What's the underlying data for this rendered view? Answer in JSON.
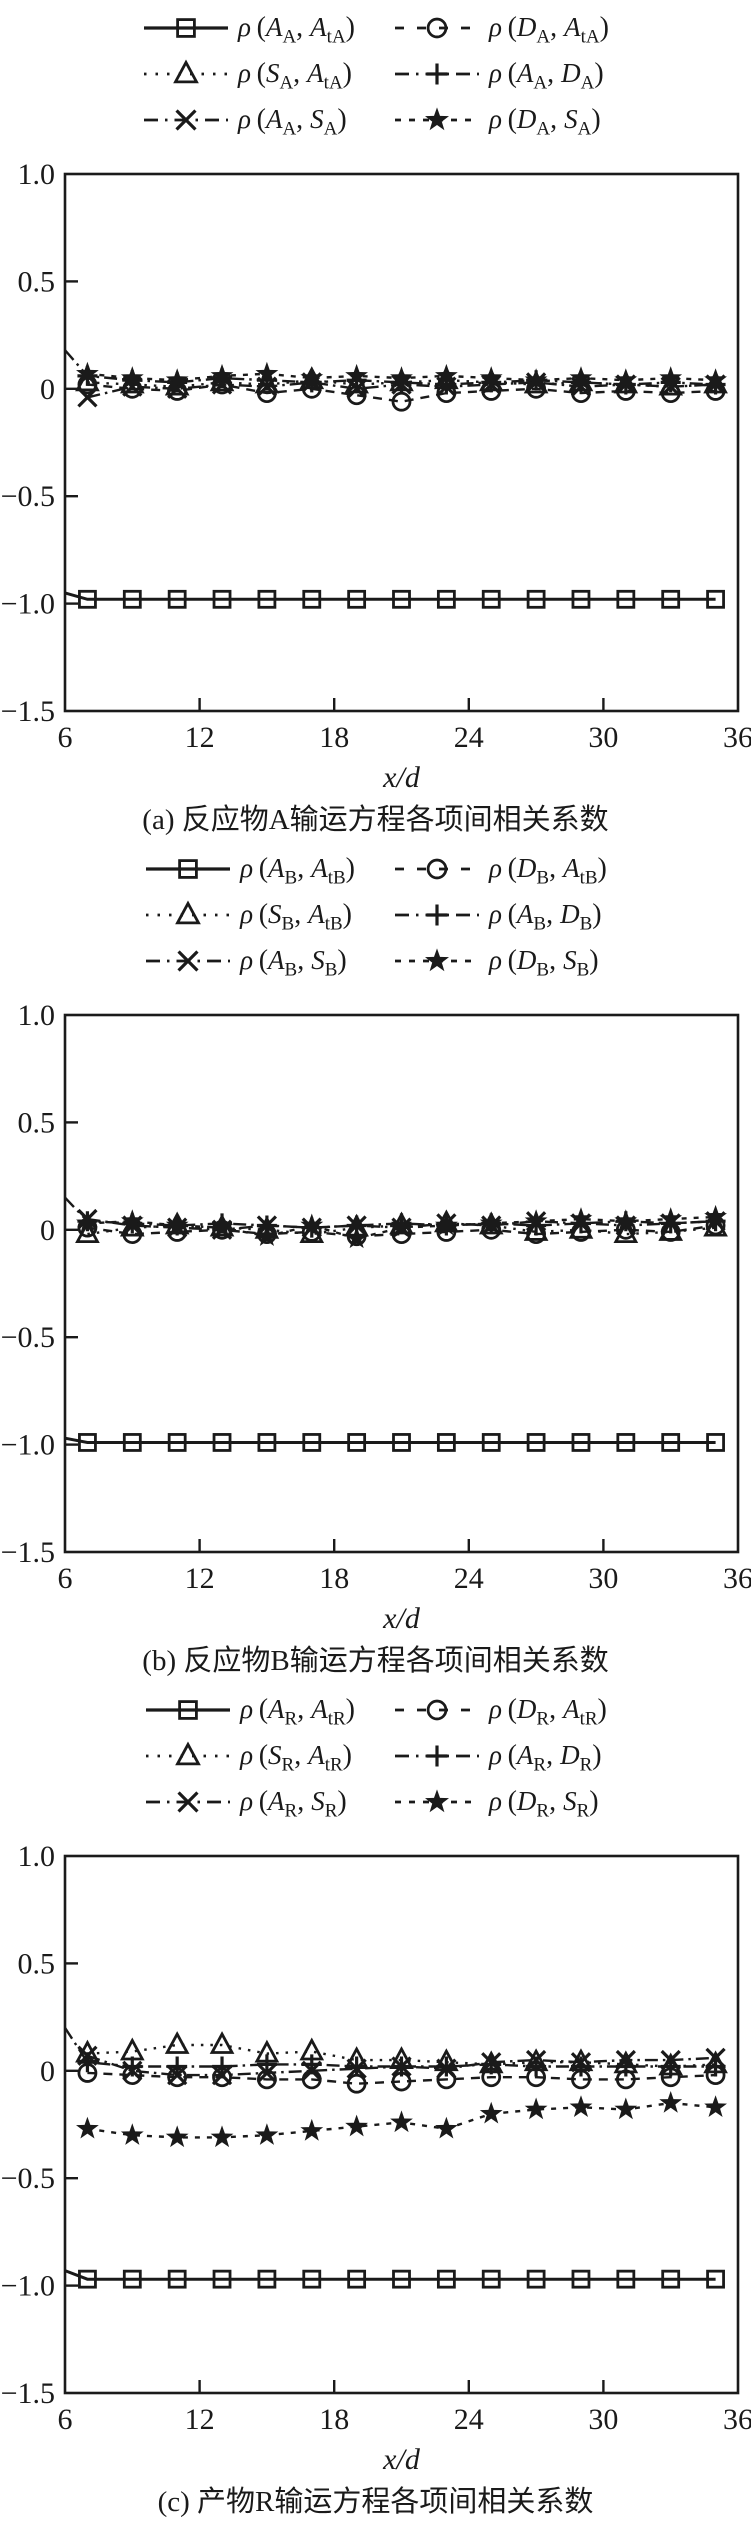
{
  "figure": {
    "ink": "#1a1a1a",
    "background": "#ffffff"
  },
  "axis": {
    "xlabel": "x/d",
    "xlim": [
      6,
      36
    ],
    "ylim": [
      -1.5,
      1.0
    ],
    "x_ticks": [
      6,
      12,
      18,
      24,
      30,
      36
    ],
    "y_ticks": [
      1.0,
      0.5,
      0,
      -0.5,
      -1.0,
      -1.5
    ],
    "y_tick_labels": [
      "1.0",
      "0.5",
      "0",
      "−0.5",
      "−1.0",
      "−1.5"
    ],
    "grid": false
  },
  "panels": [
    {
      "id": "a",
      "caption": "(a) 反应物A输运方程各项间相关系数",
      "legend": [
        {
          "marker": "square",
          "line": "solid",
          "label": {
            "v1": "A",
            "s1": "A",
            "v2": "A",
            "s2": "tA"
          }
        },
        {
          "marker": "circle",
          "line": "dash",
          "label": {
            "v1": "D",
            "s1": "A",
            "v2": "A",
            "s2": "tA"
          }
        },
        {
          "marker": "triangle",
          "line": "dot",
          "label": {
            "v1": "S",
            "s1": "A",
            "v2": "A",
            "s2": "tA"
          }
        },
        {
          "marker": "plus",
          "line": "dashdot",
          "label": {
            "v1": "A",
            "s1": "A",
            "v2": "D",
            "s2": "A"
          }
        },
        {
          "marker": "x",
          "line": "dashdot",
          "label": {
            "v1": "A",
            "s1": "A",
            "v2": "S",
            "s2": "A"
          }
        },
        {
          "marker": "star",
          "line": "dash2",
          "label": {
            "v1": "D",
            "s1": "A",
            "v2": "S",
            "s2": "A"
          }
        }
      ]
    },
    {
      "id": "b",
      "caption": "(b) 反应物B输运方程各项间相关系数",
      "legend": [
        {
          "marker": "square",
          "line": "solid",
          "label": {
            "v1": "A",
            "s1": "B",
            "v2": "A",
            "s2": "tB"
          }
        },
        {
          "marker": "circle",
          "line": "dash",
          "label": {
            "v1": "D",
            "s1": "B",
            "v2": "A",
            "s2": "tB"
          }
        },
        {
          "marker": "triangle",
          "line": "dot",
          "label": {
            "v1": "S",
            "s1": "B",
            "v2": "A",
            "s2": "tB"
          }
        },
        {
          "marker": "plus",
          "line": "dashdot",
          "label": {
            "v1": "A",
            "s1": "B",
            "v2": "D",
            "s2": "B"
          }
        },
        {
          "marker": "x",
          "line": "dashdot",
          "label": {
            "v1": "A",
            "s1": "B",
            "v2": "S",
            "s2": "B"
          }
        },
        {
          "marker": "star",
          "line": "dash2",
          "label": {
            "v1": "D",
            "s1": "B",
            "v2": "S",
            "s2": "B"
          }
        }
      ]
    },
    {
      "id": "c",
      "caption": "(c) 产物R输运方程各项间相关系数",
      "legend": [
        {
          "marker": "square",
          "line": "solid",
          "label": {
            "v1": "A",
            "s1": "R",
            "v2": "A",
            "s2": "tR"
          }
        },
        {
          "marker": "circle",
          "line": "dash",
          "label": {
            "v1": "D",
            "s1": "R",
            "v2": "A",
            "s2": "tR"
          }
        },
        {
          "marker": "triangle",
          "line": "dot",
          "label": {
            "v1": "S",
            "s1": "R",
            "v2": "A",
            "s2": "tR"
          }
        },
        {
          "marker": "plus",
          "line": "dashdot",
          "label": {
            "v1": "A",
            "s1": "R",
            "v2": "D",
            "s2": "R"
          }
        },
        {
          "marker": "x",
          "line": "dashdot",
          "label": {
            "v1": "A",
            "s1": "R",
            "v2": "S",
            "s2": "R"
          }
        },
        {
          "marker": "star",
          "line": "dash2",
          "label": {
            "v1": "D",
            "s1": "R",
            "v2": "S",
            "s2": "R"
          }
        }
      ]
    }
  ],
  "chart_data": [
    {
      "type": "line",
      "title": "(a) 反应物A输运方程各项间相关系数",
      "xlabel": "x/d",
      "ylabel": "",
      "xlim": [
        6,
        36
      ],
      "ylim": [
        -1.5,
        1.0
      ],
      "x_ticks": [
        6,
        12,
        18,
        24,
        30,
        36
      ],
      "y_ticks": [
        1.0,
        0.5,
        0,
        -0.5,
        -1.0,
        -1.5
      ],
      "legend_position": "top",
      "x": [
        7,
        9,
        11,
        13,
        15,
        17,
        19,
        21,
        23,
        25,
        27,
        29,
        31,
        33,
        35
      ],
      "series": [
        {
          "name": "ρ(A_A, A_tA)",
          "marker": "square",
          "line": "solid",
          "lead": [
            6,
            -0.95
          ],
          "values": [
            -0.98,
            -0.98,
            -0.98,
            -0.98,
            -0.98,
            -0.98,
            -0.98,
            -0.98,
            -0.98,
            -0.98,
            -0.98,
            -0.98,
            -0.98,
            -0.98,
            -0.98
          ]
        },
        {
          "name": "ρ(D_A, A_tA)",
          "marker": "circle",
          "line": "dash",
          "values": [
            0.02,
            0.0,
            -0.01,
            0.02,
            -0.02,
            0.0,
            -0.03,
            -0.06,
            -0.02,
            -0.01,
            0.0,
            -0.02,
            -0.01,
            -0.02,
            -0.01
          ]
        },
        {
          "name": "ρ(S_A, A_tA)",
          "marker": "triangle",
          "line": "dot",
          "values": [
            0.03,
            0.02,
            0.01,
            0.03,
            0.02,
            0.04,
            0.02,
            0.03,
            0.04,
            0.03,
            0.02,
            0.03,
            0.02,
            0.01,
            0.02
          ]
        },
        {
          "name": "ρ(A_A, D_A)",
          "marker": "plus",
          "line": "dashdot",
          "lead": [
            6,
            0.18
          ],
          "values": [
            0.06,
            0.04,
            0.03,
            0.05,
            0.04,
            0.03,
            0.04,
            0.03,
            0.02,
            0.03,
            0.04,
            0.03,
            0.02,
            0.03,
            0.02
          ]
        },
        {
          "name": "ρ(A_A, S_A)",
          "marker": "x",
          "line": "dashdot",
          "values": [
            -0.04,
            0.01,
            0.0,
            0.02,
            0.01,
            0.03,
            0.0,
            0.02,
            0.01,
            0.02,
            0.03,
            0.01,
            0.02,
            0.01,
            0.02
          ]
        },
        {
          "name": "ρ(D_A, S_A)",
          "marker": "star",
          "line": "dash2",
          "values": [
            0.07,
            0.05,
            0.04,
            0.06,
            0.07,
            0.05,
            0.06,
            0.05,
            0.06,
            0.05,
            0.04,
            0.05,
            0.04,
            0.05,
            0.04
          ]
        }
      ]
    },
    {
      "type": "line",
      "title": "(b) 反应物B输运方程各项间相关系数",
      "xlabel": "x/d",
      "ylabel": "",
      "xlim": [
        6,
        36
      ],
      "ylim": [
        -1.5,
        1.0
      ],
      "x_ticks": [
        6,
        12,
        18,
        24,
        30,
        36
      ],
      "y_ticks": [
        1.0,
        0.5,
        0,
        -0.5,
        -1.0,
        -1.5
      ],
      "legend_position": "top",
      "x": [
        7,
        9,
        11,
        13,
        15,
        17,
        19,
        21,
        23,
        25,
        27,
        29,
        31,
        33,
        35
      ],
      "series": [
        {
          "name": "ρ(A_B, A_tB)",
          "marker": "square",
          "line": "solid",
          "lead": [
            6,
            -0.97
          ],
          "values": [
            -0.99,
            -0.99,
            -0.99,
            -0.99,
            -0.99,
            -0.99,
            -0.99,
            -0.99,
            -0.99,
            -0.99,
            -0.99,
            -0.99,
            -0.99,
            -0.99,
            -0.99
          ]
        },
        {
          "name": "ρ(D_B, A_tB)",
          "marker": "circle",
          "line": "dash",
          "values": [
            0.01,
            -0.02,
            -0.01,
            0.0,
            -0.02,
            -0.01,
            -0.03,
            -0.02,
            -0.01,
            0.0,
            -0.02,
            -0.01,
            0.0,
            -0.01,
            0.02
          ]
        },
        {
          "name": "ρ(S_B, A_tB)",
          "marker": "triangle",
          "line": "dot",
          "values": [
            -0.02,
            0.01,
            0.02,
            0.01,
            0.0,
            -0.02,
            0.01,
            0.02,
            0.03,
            0.02,
            -0.01,
            0.0,
            -0.02,
            -0.01,
            0.01
          ]
        },
        {
          "name": "ρ(A_B, D_B)",
          "marker": "plus",
          "line": "dashdot",
          "lead": [
            6,
            0.15
          ],
          "values": [
            0.04,
            0.03,
            0.02,
            0.03,
            0.02,
            0.01,
            0.02,
            0.03,
            0.02,
            0.03,
            0.02,
            0.03,
            0.04,
            0.03,
            0.04
          ]
        },
        {
          "name": "ρ(A_B, S_B)",
          "marker": "x",
          "line": "dashdot",
          "values": [
            0.05,
            0.02,
            0.01,
            0.0,
            0.02,
            0.01,
            0.02,
            0.01,
            0.03,
            0.02,
            0.04,
            0.03,
            0.02,
            0.03,
            0.04
          ]
        },
        {
          "name": "ρ(D_B, S_B)",
          "marker": "star",
          "line": "dash2",
          "values": [
            0.03,
            0.04,
            0.02,
            0.01,
            -0.03,
            0.02,
            -0.04,
            0.01,
            0.02,
            0.03,
            0.04,
            0.05,
            0.04,
            0.05,
            0.06
          ]
        }
      ]
    },
    {
      "type": "line",
      "title": "(c) 产物R输运方程各项间相关系数",
      "xlabel": "x/d",
      "ylabel": "",
      "xlim": [
        6,
        36
      ],
      "ylim": [
        -1.5,
        1.0
      ],
      "x_ticks": [
        6,
        12,
        18,
        24,
        30,
        36
      ],
      "y_ticks": [
        1.0,
        0.5,
        0,
        -0.5,
        -1.0,
        -1.5
      ],
      "legend_position": "top",
      "x": [
        7,
        9,
        11,
        13,
        15,
        17,
        19,
        21,
        23,
        25,
        27,
        29,
        31,
        33,
        35
      ],
      "series": [
        {
          "name": "ρ(A_R, A_tR)",
          "marker": "square",
          "line": "solid",
          "lead": [
            6,
            -0.93
          ],
          "values": [
            -0.97,
            -0.97,
            -0.97,
            -0.97,
            -0.97,
            -0.97,
            -0.97,
            -0.97,
            -0.97,
            -0.97,
            -0.97,
            -0.97,
            -0.97,
            -0.97,
            -0.97
          ]
        },
        {
          "name": "ρ(D_R, A_tR)",
          "marker": "circle",
          "line": "dash",
          "values": [
            -0.01,
            -0.02,
            -0.03,
            -0.03,
            -0.04,
            -0.04,
            -0.06,
            -0.05,
            -0.04,
            -0.03,
            -0.03,
            -0.04,
            -0.04,
            -0.03,
            -0.02
          ]
        },
        {
          "name": "ρ(S_R, A_tR)",
          "marker": "triangle",
          "line": "dot",
          "values": [
            0.08,
            0.09,
            0.12,
            0.12,
            0.08,
            0.09,
            0.05,
            0.05,
            0.04,
            0.03,
            0.04,
            0.04,
            0.03,
            0.02,
            0.03
          ]
        },
        {
          "name": "ρ(A_R, D_R)",
          "marker": "plus",
          "line": "dashdot",
          "lead": [
            6,
            0.2
          ],
          "values": [
            0.04,
            0.02,
            0.02,
            0.02,
            0.03,
            0.03,
            0.02,
            0.02,
            0.02,
            0.03,
            0.02,
            0.02,
            0.02,
            0.02,
            0.02
          ]
        },
        {
          "name": "ρ(A_R, S_R)",
          "marker": "x",
          "line": "dashdot",
          "values": [
            0.07,
            0.0,
            -0.02,
            -0.02,
            -0.01,
            0.0,
            0.01,
            0.02,
            0.01,
            0.04,
            0.05,
            0.04,
            0.05,
            0.05,
            0.06
          ]
        },
        {
          "name": "ρ(D_R, S_R)",
          "marker": "star",
          "line": "dash2",
          "values": [
            -0.27,
            -0.3,
            -0.31,
            -0.31,
            -0.3,
            -0.28,
            -0.26,
            -0.24,
            -0.27,
            -0.2,
            -0.18,
            -0.17,
            -0.18,
            -0.15,
            -0.17
          ]
        }
      ]
    }
  ]
}
